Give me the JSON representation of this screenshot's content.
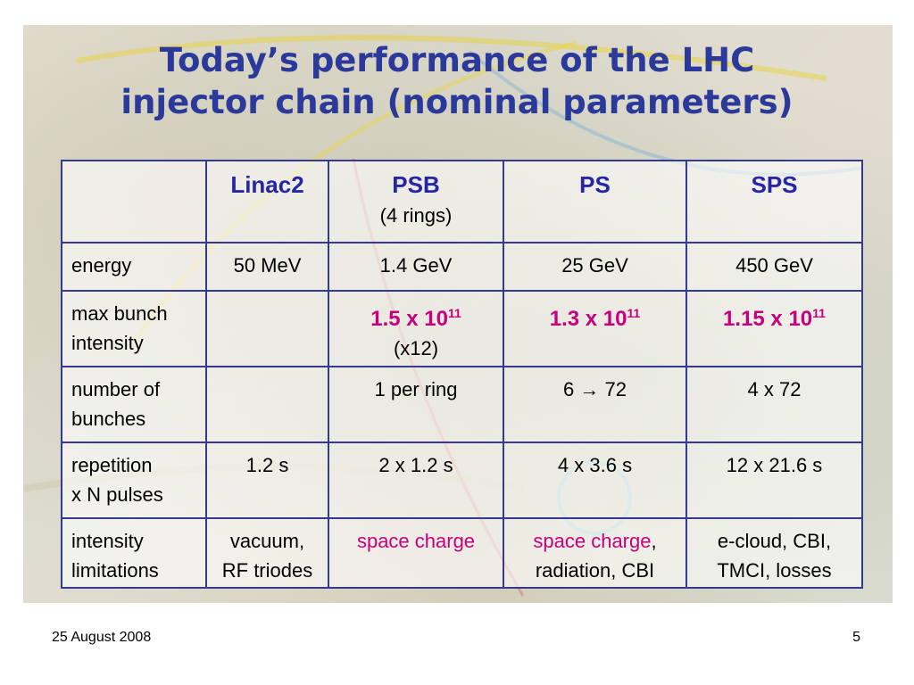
{
  "slide": {
    "title_line1": "Today’s performance of the LHC",
    "title_line2": "injector chain (nominal parameters)",
    "footer_date": "25 August 2008",
    "page_number": "5",
    "title_color": "#2b3a9a",
    "accent_color": "#c8007d"
  },
  "table": {
    "headers": {
      "empty": "",
      "linac2": "Linac2",
      "psb": "PSB",
      "psb_sub": "(4 rings)",
      "ps": "PS",
      "sps": "SPS"
    },
    "energy": {
      "label": "energy",
      "linac2": "50 MeV",
      "psb": "1.4 GeV",
      "ps": "25 GeV",
      "sps": "450 GeV"
    },
    "intensity": {
      "label_line1": "max bunch",
      "label_line2": "intensity",
      "psb_base": "1.5 x 10",
      "psb_exp": "11",
      "psb_sub": "(x12)",
      "ps_base": "1.3 x 10",
      "ps_exp": "11",
      "sps_base": "1.15 x 10",
      "sps_exp": "11"
    },
    "bunches": {
      "label_line1": "number of",
      "label_line2": "bunches",
      "psb": "1 per ring",
      "ps": "6 → 72",
      "sps": "4 x 72"
    },
    "repetition": {
      "label_line1": "repetition",
      "label_line2": "x N pulses",
      "linac2": "1.2 s",
      "psb": "2 x 1.2 s",
      "ps": "4 x 3.6 s",
      "sps": "12 x 21.6 s"
    },
    "limitations": {
      "label_line1": "intensity",
      "label_line2": "limitations",
      "linac2_line1": "vacuum,",
      "linac2_line2": "RF triodes",
      "psb": "space charge",
      "ps_mag": "space charge",
      "ps_comma": ",",
      "ps_line2": "radiation, CBI",
      "sps_line1": "e-cloud, CBI,",
      "sps_line2": "TMCI, losses"
    }
  }
}
